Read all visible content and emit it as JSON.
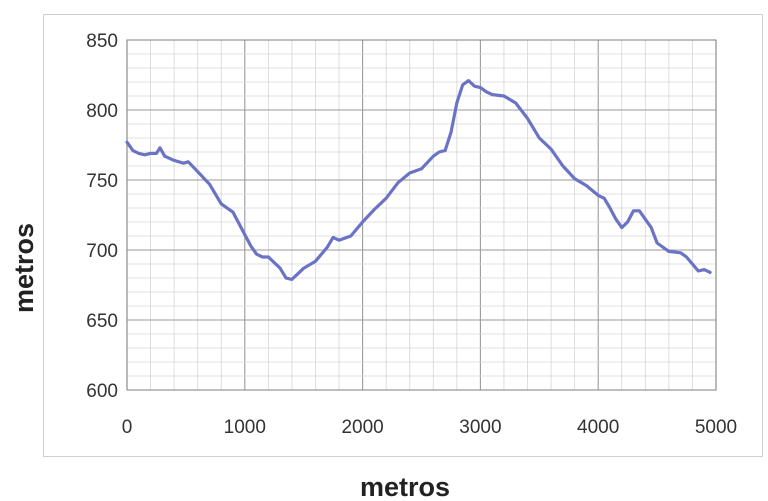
{
  "chart_data": {
    "type": "line",
    "title": "",
    "xlabel": "metros",
    "ylabel": "metros",
    "xlim": [
      0,
      5000
    ],
    "ylim": [
      600,
      850
    ],
    "x_ticks": [
      0,
      1000,
      2000,
      3000,
      4000,
      5000
    ],
    "y_ticks": [
      600,
      650,
      700,
      750,
      800,
      850
    ],
    "x_tick_labels": [
      "0",
      "1000",
      "2000",
      "3000",
      "4000",
      "5000"
    ],
    "y_tick_labels": [
      "600",
      "650",
      "700",
      "750",
      "800",
      "850"
    ],
    "x_minor_step": 200,
    "y_minor_step": 10,
    "grid": true,
    "legend": "none",
    "series": [
      {
        "color": "#6b74c4",
        "x": [
          0,
          50,
          100,
          150,
          200,
          250,
          280,
          320,
          400,
          480,
          520,
          600,
          700,
          800,
          900,
          1000,
          1050,
          1100,
          1150,
          1200,
          1300,
          1350,
          1400,
          1450,
          1500,
          1600,
          1700,
          1750,
          1800,
          1900,
          2000,
          2100,
          2200,
          2300,
          2400,
          2500,
          2600,
          2650,
          2700,
          2750,
          2800,
          2850,
          2900,
          2950,
          3000,
          3050,
          3100,
          3200,
          3300,
          3400,
          3500,
          3600,
          3700,
          3800,
          3900,
          4000,
          4050,
          4100,
          4150,
          4200,
          4250,
          4300,
          4350,
          4400,
          4450,
          4500,
          4600,
          4700,
          4750,
          4800,
          4850,
          4900,
          4950
        ],
        "y": [
          777,
          771,
          769,
          768,
          769,
          769,
          773,
          767,
          764,
          762,
          763,
          756,
          747,
          733,
          727,
          711,
          703,
          697,
          695,
          695,
          687,
          680,
          679,
          683,
          687,
          692,
          702,
          709,
          707,
          710,
          720,
          729,
          737,
          748,
          755,
          758,
          767,
          770,
          771,
          784,
          805,
          818,
          821,
          817,
          816,
          813,
          811,
          810,
          805,
          794,
          780,
          772,
          760,
          751,
          746,
          739,
          737,
          730,
          722,
          716,
          720,
          728,
          728,
          722,
          716,
          705,
          699,
          698,
          695,
          690,
          685,
          686,
          684
        ]
      }
    ]
  }
}
